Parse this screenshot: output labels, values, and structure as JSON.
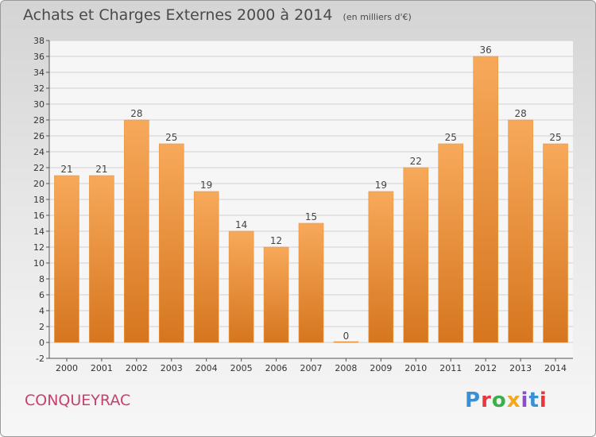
{
  "title": {
    "main": "Achats et Charges Externes 2000 à 2014",
    "unit": "(en milliers d'€)"
  },
  "place_name": "CONQUEYRAC",
  "logo": {
    "text": "Proxiti",
    "letter_colors": [
      "#3b8fd4",
      "#e8383d",
      "#3bb04a",
      "#f2a81d",
      "#8a4fc2",
      "#3b8fd4",
      "#e8383d"
    ]
  },
  "colors": {
    "bar_light": "#f7a95a",
    "bar_dark": "#d6761f",
    "place": "#c4426d"
  },
  "chart_data": {
    "type": "bar",
    "title": "Achats et Charges Externes 2000 à 2014",
    "subtitle": "(en milliers d'€)",
    "xlabel": "",
    "ylabel": "",
    "categories": [
      "2000",
      "2001",
      "2002",
      "2003",
      "2004",
      "2005",
      "2006",
      "2007",
      "2008",
      "2009",
      "2010",
      "2011",
      "2012",
      "2013",
      "2014"
    ],
    "values": [
      21,
      21,
      28,
      25,
      19,
      14,
      12,
      15,
      0,
      19,
      22,
      25,
      36,
      28,
      25
    ],
    "ylim": [
      -2,
      38
    ],
    "yticks": [
      -2,
      0,
      2,
      4,
      6,
      8,
      10,
      12,
      14,
      16,
      18,
      20,
      22,
      24,
      26,
      28,
      30,
      32,
      34,
      36,
      38
    ],
    "grid": true,
    "legend": "none"
  }
}
